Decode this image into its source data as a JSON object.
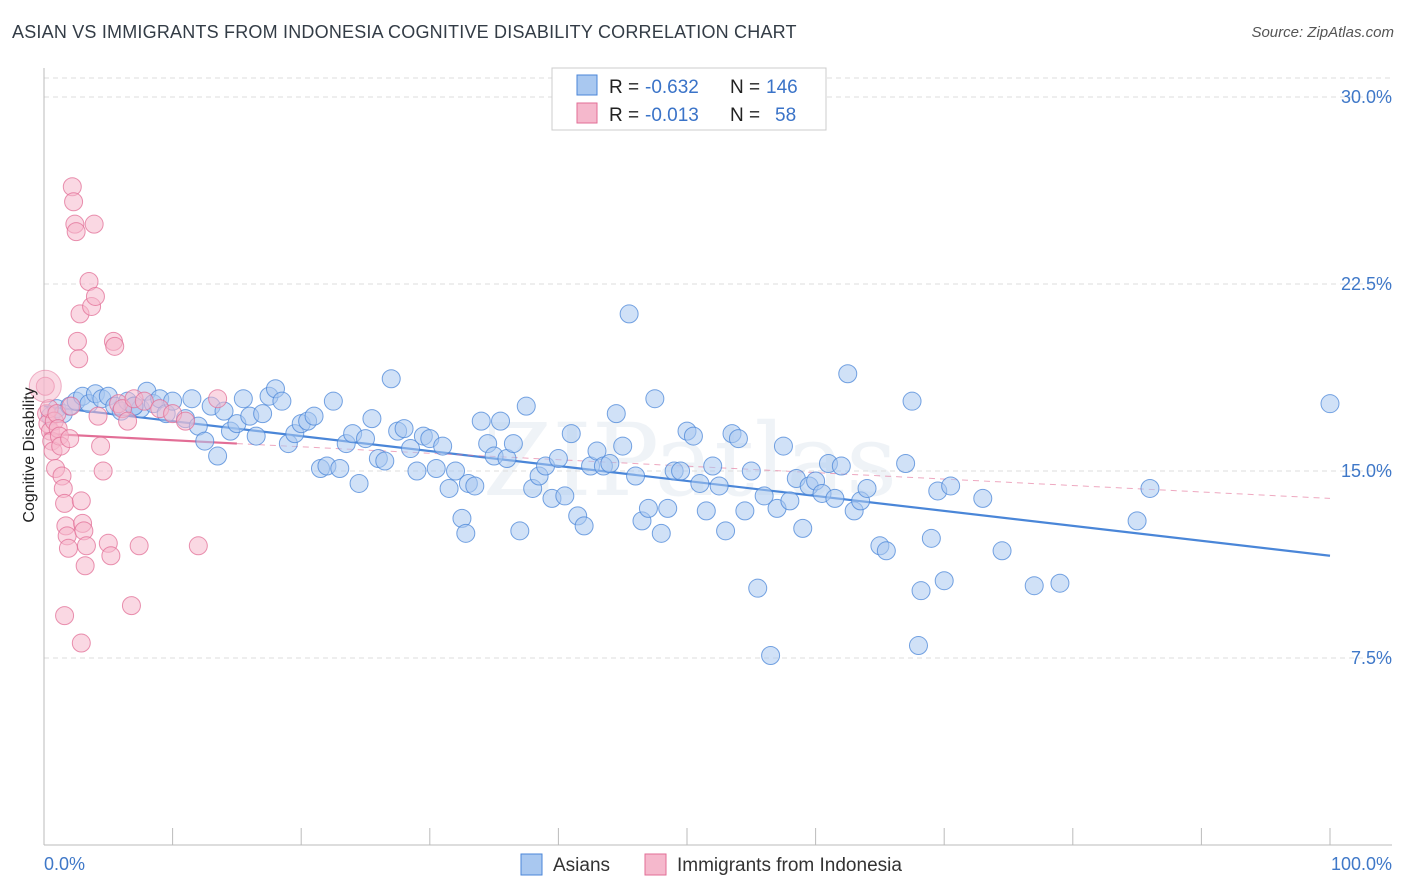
{
  "header": {
    "title": "ASIAN VS IMMIGRANTS FROM INDONESIA COGNITIVE DISABILITY CORRELATION CHART",
    "source": "Source: ZipAtlas.com"
  },
  "stats_legend": [
    {
      "r_label": "R =",
      "r_value": "-0.632",
      "n_label": "N =",
      "n_value": "146"
    },
    {
      "r_label": "R =",
      "r_value": "-0.013",
      "n_label": "N =",
      "n_value": "58"
    }
  ],
  "colors": {
    "asians": "#4a86d8",
    "asians_fill": "#a9c8f0",
    "indonesia": "#e26e96",
    "indonesia_fill": "#f5b8cc",
    "grid": "#dddddd",
    "tick_text": "#3f78c8"
  },
  "chart_data": {
    "type": "scatter",
    "title": "ASIAN VS IMMIGRANTS FROM INDONESIA COGNITIVE DISABILITY CORRELATION CHART",
    "xlabel": "",
    "ylabel": "Cognitive Disability",
    "xlim": [
      0,
      100
    ],
    "ylim": [
      0,
      31.5
    ],
    "x_tick_labels": [
      "0.0%",
      "100.0%"
    ],
    "y_ticks": [
      7.5,
      15.0,
      22.5,
      30.0
    ],
    "y_tick_labels": [
      "7.5%",
      "15.0%",
      "22.5%",
      "30.0%"
    ],
    "grid": true,
    "legend_position": "bottom",
    "watermark": "ZIPatlas",
    "series": [
      {
        "name": "Asians",
        "color": "#4a86d8",
        "trend": {
          "x": [
            0,
            100
          ],
          "y": [
            17.6,
            11.6
          ]
        },
        "points": [
          [
            0.5,
            17.2
          ],
          [
            1,
            17.5
          ],
          [
            1.5,
            17.3
          ],
          [
            2,
            17.6
          ],
          [
            2.5,
            17.8
          ],
          [
            3,
            18.0
          ],
          [
            3.5,
            17.7
          ],
          [
            4,
            18.1
          ],
          [
            4.5,
            17.9
          ],
          [
            5,
            18.0
          ],
          [
            5.5,
            17.6
          ],
          [
            6,
            17.4
          ],
          [
            6.5,
            17.8
          ],
          [
            7,
            17.6
          ],
          [
            7.5,
            17.5
          ],
          [
            8,
            18.2
          ],
          [
            8.5,
            17.7
          ],
          [
            9,
            17.9
          ],
          [
            9.5,
            17.3
          ],
          [
            10,
            17.8
          ],
          [
            11,
            17.1
          ],
          [
            11.5,
            17.9
          ],
          [
            12,
            16.8
          ],
          [
            12.5,
            16.2
          ],
          [
            13,
            17.6
          ],
          [
            13.5,
            15.6
          ],
          [
            14,
            17.4
          ],
          [
            14.5,
            16.6
          ],
          [
            15,
            16.9
          ],
          [
            15.5,
            17.9
          ],
          [
            16,
            17.2
          ],
          [
            16.5,
            16.4
          ],
          [
            17,
            17.3
          ],
          [
            17.5,
            18.0
          ],
          [
            18,
            18.3
          ],
          [
            18.5,
            17.8
          ],
          [
            19,
            16.1
          ],
          [
            19.5,
            16.5
          ],
          [
            20,
            16.9
          ],
          [
            20.5,
            17.0
          ],
          [
            21,
            17.2
          ],
          [
            21.5,
            15.1
          ],
          [
            22,
            15.2
          ],
          [
            22.5,
            17.8
          ],
          [
            23,
            15.1
          ],
          [
            23.5,
            16.1
          ],
          [
            24,
            16.5
          ],
          [
            24.5,
            14.5
          ],
          [
            25,
            16.3
          ],
          [
            25.5,
            17.1
          ],
          [
            26,
            15.5
          ],
          [
            26.5,
            15.4
          ],
          [
            27,
            18.7
          ],
          [
            27.5,
            16.6
          ],
          [
            28,
            16.7
          ],
          [
            28.5,
            15.9
          ],
          [
            29,
            15.0
          ],
          [
            29.5,
            16.4
          ],
          [
            30,
            16.3
          ],
          [
            30.5,
            15.1
          ],
          [
            31,
            16.0
          ],
          [
            31.5,
            14.3
          ],
          [
            32,
            15.0
          ],
          [
            32.5,
            13.1
          ],
          [
            32.8,
            12.5
          ],
          [
            33,
            14.5
          ],
          [
            33.5,
            14.4
          ],
          [
            34,
            17.0
          ],
          [
            34.5,
            16.1
          ],
          [
            35,
            15.6
          ],
          [
            35.5,
            17.0
          ],
          [
            36,
            15.5
          ],
          [
            36.5,
            16.1
          ],
          [
            37,
            12.6
          ],
          [
            37.5,
            17.6
          ],
          [
            38,
            14.3
          ],
          [
            38.5,
            14.8
          ],
          [
            39,
            15.2
          ],
          [
            39.5,
            13.9
          ],
          [
            40,
            15.5
          ],
          [
            40.5,
            14.0
          ],
          [
            41,
            16.5
          ],
          [
            41.5,
            13.2
          ],
          [
            42,
            12.8
          ],
          [
            42.5,
            15.2
          ],
          [
            43,
            15.8
          ],
          [
            43.5,
            15.2
          ],
          [
            44,
            15.3
          ],
          [
            44.5,
            17.3
          ],
          [
            45,
            16.0
          ],
          [
            45.5,
            21.3
          ],
          [
            46,
            14.8
          ],
          [
            46.5,
            13.0
          ],
          [
            47,
            13.5
          ],
          [
            47.5,
            17.9
          ],
          [
            48,
            12.5
          ],
          [
            48.5,
            13.5
          ],
          [
            49,
            15.0
          ],
          [
            49.5,
            15.0
          ],
          [
            50,
            16.6
          ],
          [
            50.5,
            16.4
          ],
          [
            51,
            14.5
          ],
          [
            51.5,
            13.4
          ],
          [
            52,
            15.2
          ],
          [
            52.5,
            14.4
          ],
          [
            53,
            12.6
          ],
          [
            53.5,
            16.5
          ],
          [
            54,
            16.3
          ],
          [
            54.5,
            13.4
          ],
          [
            55,
            15.0
          ],
          [
            55.5,
            10.3
          ],
          [
            56,
            14.0
          ],
          [
            56.5,
            7.6
          ],
          [
            57,
            13.5
          ],
          [
            57.5,
            16.0
          ],
          [
            58,
            13.8
          ],
          [
            58.5,
            14.7
          ],
          [
            59,
            12.7
          ],
          [
            59.5,
            14.4
          ],
          [
            60,
            14.6
          ],
          [
            60.5,
            14.1
          ],
          [
            61,
            15.3
          ],
          [
            61.5,
            13.9
          ],
          [
            62,
            15.2
          ],
          [
            62.5,
            18.9
          ],
          [
            63,
            13.4
          ],
          [
            63.5,
            13.8
          ],
          [
            64,
            14.3
          ],
          [
            65,
            12.0
          ],
          [
            65.5,
            11.8
          ],
          [
            67,
            15.3
          ],
          [
            67.5,
            17.8
          ],
          [
            68,
            8.0
          ],
          [
            68.2,
            10.2
          ],
          [
            69,
            12.3
          ],
          [
            69.5,
            14.2
          ],
          [
            70,
            10.6
          ],
          [
            70.5,
            14.4
          ],
          [
            73,
            13.9
          ],
          [
            74.5,
            11.8
          ],
          [
            77,
            10.4
          ],
          [
            79,
            10.5
          ],
          [
            85,
            13.0
          ],
          [
            86,
            14.3
          ],
          [
            100,
            17.7
          ],
          [
            7,
            17.6
          ]
        ]
      },
      {
        "name": "Immigrants from Indonesia",
        "color": "#e26e96",
        "trend": {
          "x": [
            0,
            15
          ],
          "y": [
            16.5,
            16.1
          ]
        },
        "trend_extension": {
          "x": [
            15,
            100
          ],
          "y": [
            16.1,
            13.9
          ]
        },
        "points": [
          [
            0.1,
            18.4
          ],
          [
            0.2,
            17.3
          ],
          [
            0.3,
            16.9
          ],
          [
            0.4,
            17.5
          ],
          [
            0.5,
            16.6
          ],
          [
            0.6,
            16.2
          ],
          [
            0.7,
            15.8
          ],
          [
            0.8,
            17.0
          ],
          [
            0.9,
            15.1
          ],
          [
            1.0,
            17.3
          ],
          [
            1.1,
            16.7
          ],
          [
            1.2,
            16.4
          ],
          [
            1.3,
            16.0
          ],
          [
            1.4,
            14.8
          ],
          [
            1.5,
            14.3
          ],
          [
            1.6,
            13.7
          ],
          [
            1.7,
            12.8
          ],
          [
            1.8,
            12.4
          ],
          [
            1.9,
            11.9
          ],
          [
            2.0,
            16.3
          ],
          [
            2.1,
            17.6
          ],
          [
            2.2,
            26.4
          ],
          [
            2.3,
            25.8
          ],
          [
            2.4,
            24.9
          ],
          [
            2.5,
            24.6
          ],
          [
            2.6,
            20.2
          ],
          [
            2.7,
            19.5
          ],
          [
            2.8,
            21.3
          ],
          [
            2.9,
            13.8
          ],
          [
            3.0,
            12.9
          ],
          [
            3.1,
            12.6
          ],
          [
            3.2,
            11.2
          ],
          [
            3.3,
            12.0
          ],
          [
            3.5,
            22.6
          ],
          [
            3.7,
            21.6
          ],
          [
            3.9,
            24.9
          ],
          [
            4.0,
            22.0
          ],
          [
            4.2,
            17.2
          ],
          [
            4.4,
            16.0
          ],
          [
            4.6,
            15.0
          ],
          [
            5.0,
            12.1
          ],
          [
            5.2,
            11.6
          ],
          [
            5.4,
            20.2
          ],
          [
            5.5,
            20.0
          ],
          [
            5.8,
            17.7
          ],
          [
            6.1,
            17.5
          ],
          [
            6.5,
            17.0
          ],
          [
            6.8,
            9.6
          ],
          [
            7.0,
            17.9
          ],
          [
            7.4,
            12.0
          ],
          [
            7.8,
            17.8
          ],
          [
            9.0,
            17.5
          ],
          [
            10.0,
            17.3
          ],
          [
            11.0,
            17.0
          ],
          [
            12.0,
            12.0
          ],
          [
            13.5,
            17.9
          ],
          [
            1.6,
            9.2
          ],
          [
            2.9,
            8.1
          ]
        ]
      }
    ]
  },
  "bottom_legend": [
    {
      "label": "Asians"
    },
    {
      "label": "Immigrants from Indonesia"
    }
  ]
}
